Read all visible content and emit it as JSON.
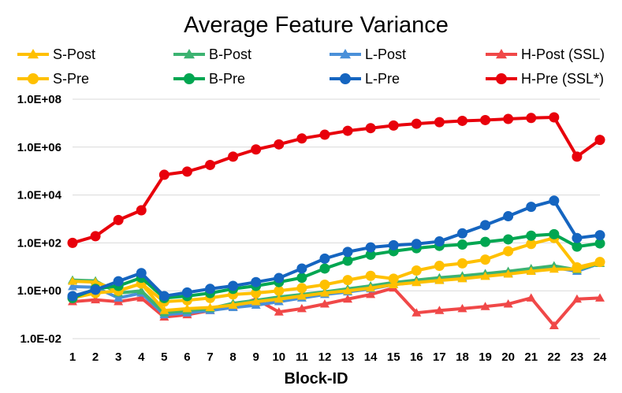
{
  "chart_data": {
    "type": "line",
    "title": "Average Feature Variance",
    "xlabel": "Block-ID",
    "ylabel": "",
    "yscale": "log",
    "ylim": [
      0.01,
      100000000
    ],
    "y_ticks": [
      0.01,
      1,
      100,
      10000,
      1000000,
      100000000
    ],
    "y_tick_labels": [
      "1.0E-02",
      "1.0E+00",
      "1.0E+02",
      "1.0E+04",
      "1.0E+06",
      "1.0E+08"
    ],
    "x": [
      1,
      2,
      3,
      4,
      5,
      6,
      7,
      8,
      9,
      10,
      11,
      12,
      13,
      14,
      15,
      16,
      17,
      18,
      19,
      20,
      21,
      22,
      23,
      24
    ],
    "x_tick_labels": [
      "1",
      "2",
      "3",
      "4",
      "5",
      "6",
      "7",
      "8",
      "9",
      "10",
      "11",
      "12",
      "13",
      "14",
      "15",
      "16",
      "17",
      "18",
      "19",
      "20",
      "21",
      "22",
      "23",
      "24"
    ],
    "grid": "horizontal",
    "legend_position": "top",
    "series": [
      {
        "name": "S-Post",
        "color": "#FFC000",
        "marker": "triangle",
        "values": [
          2.5,
          2.3,
          1.0,
          2.0,
          0.15,
          0.18,
          0.2,
          0.25,
          0.35,
          0.45,
          0.6,
          0.8,
          1.0,
          1.3,
          1.8,
          2.2,
          2.7,
          3.2,
          4.0,
          5.0,
          6.5,
          8.0,
          8.0,
          15
        ]
      },
      {
        "name": "B-Post",
        "color": "#3CB371",
        "marker": "triangle",
        "values": [
          2.8,
          2.6,
          0.8,
          1.0,
          0.12,
          0.15,
          0.18,
          0.3,
          0.4,
          0.55,
          0.7,
          0.9,
          1.2,
          1.6,
          2.2,
          2.8,
          3.5,
          4.2,
          5.2,
          6.5,
          8.5,
          11,
          7.5,
          14
        ]
      },
      {
        "name": "L-Post",
        "color": "#4A90D9",
        "marker": "triangle",
        "values": [
          1.5,
          1.4,
          0.5,
          0.8,
          0.1,
          0.12,
          0.15,
          0.2,
          0.25,
          0.35,
          0.5,
          0.7,
          0.9,
          1.2,
          1.8,
          2.3,
          2.9,
          3.5,
          4.2,
          5.3,
          7.0,
          9.5,
          6.5,
          14
        ]
      },
      {
        "name": "H-Post (SSL)",
        "color": "#F04848",
        "marker": "triangle",
        "values": [
          0.35,
          0.42,
          0.35,
          0.5,
          0.08,
          0.1,
          0.15,
          0.22,
          0.45,
          0.13,
          0.18,
          0.28,
          0.45,
          0.7,
          1.3,
          0.12,
          0.15,
          0.18,
          0.22,
          0.28,
          0.5,
          0.035,
          0.45,
          0.5
        ]
      },
      {
        "name": "S-Pre",
        "color": "#FFC000",
        "marker": "circle",
        "values": [
          0.5,
          0.8,
          1.0,
          2.0,
          0.35,
          0.4,
          0.5,
          0.7,
          0.8,
          1.0,
          1.3,
          1.8,
          2.8,
          4.2,
          3.2,
          7.0,
          11,
          14,
          20,
          45,
          90,
          160,
          9.5,
          16
        ]
      },
      {
        "name": "B-Pre",
        "color": "#00A651",
        "marker": "circle",
        "values": [
          0.5,
          1.2,
          1.6,
          3.5,
          0.5,
          0.6,
          0.8,
          1.2,
          1.6,
          2.3,
          3.5,
          8.5,
          18,
          32,
          45,
          60,
          75,
          85,
          110,
          140,
          200,
          230,
          70,
          95
        ]
      },
      {
        "name": "L-Pre",
        "color": "#1565C0",
        "marker": "circle",
        "values": [
          0.6,
          1.1,
          2.5,
          5.5,
          0.6,
          0.85,
          1.2,
          1.6,
          2.3,
          3.4,
          8.5,
          22,
          42,
          65,
          80,
          90,
          115,
          250,
          550,
          1300,
          3200,
          5800,
          160,
          210
        ]
      },
      {
        "name": "H-Pre (SSL*)",
        "color": "#E8000B",
        "marker": "circle",
        "values": [
          100,
          190,
          900,
          2300,
          70000,
          95000,
          180000,
          400000,
          800000,
          1300000,
          2300000,
          3300000,
          4800000,
          6200000,
          8000000,
          9500000,
          11000000,
          12500000,
          13500000,
          15000000,
          16500000,
          17500000,
          400000,
          2000000
        ]
      }
    ]
  }
}
